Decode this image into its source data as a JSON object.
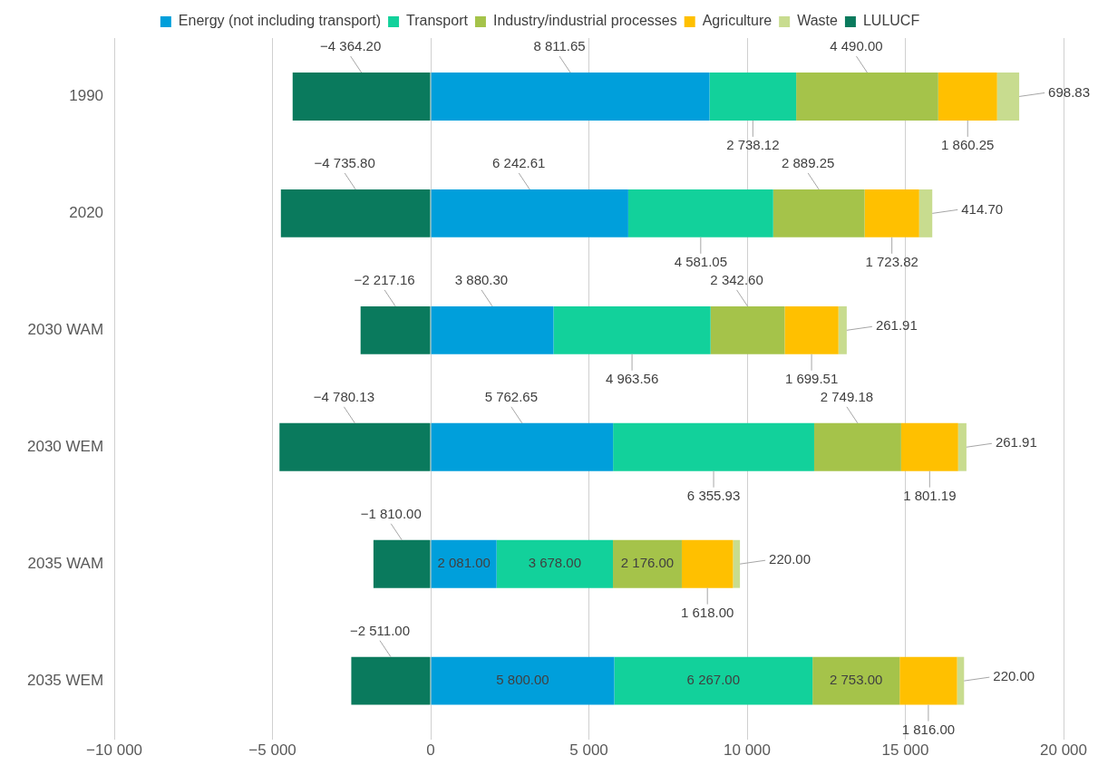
{
  "chart_data": {
    "type": "bar",
    "orientation": "horizontal",
    "stacked": true,
    "legend": "top",
    "grid": "x",
    "categories": [
      "1990",
      "2020",
      "2030 WAM",
      "2030 WEM",
      "2035 WAM",
      "2035 WEM"
    ],
    "xlim": [
      -10000,
      20000
    ],
    "xticks": [
      {
        "value": -10000,
        "label": "−10 000"
      },
      {
        "value": -5000,
        "label": "−5 000"
      },
      0,
      {
        "value": 5000,
        "label": "5 000"
      },
      {
        "value": 10000,
        "label": "10 000"
      },
      {
        "value": 15000,
        "label": "15 000"
      },
      {
        "value": 20000,
        "label": "20 000"
      }
    ],
    "series": [
      {
        "name": "Energy (not including transport)",
        "color": "#009fdb",
        "values": [
          8811.65,
          6242.61,
          3880.3,
          5762.65,
          2081.0,
          5800.0
        ],
        "value_labels": [
          "8 811.65",
          "6 242.61",
          "3 880.30",
          "5 762.65",
          "2 081.00",
          "5 800.00"
        ]
      },
      {
        "name": "Transport",
        "color": "#12d19b",
        "values": [
          2738.12,
          4581.05,
          4963.56,
          6355.93,
          3678.0,
          6267.0
        ],
        "value_labels": [
          "2 738.12",
          "4 581.05",
          "4 963.56",
          "6 355.93",
          "3 678.00",
          "6 267.00"
        ]
      },
      {
        "name": "Industry/industrial processes",
        "color": "#a5c34a",
        "values": [
          4490.0,
          2889.25,
          2342.6,
          2749.18,
          2176.0,
          2753.0
        ],
        "value_labels": [
          "4 490.00",
          "2 889.25",
          "2 342.60",
          "2 749.18",
          "2 176.00",
          "2 753.00"
        ]
      },
      {
        "name": "Agriculture",
        "color": "#ffc000",
        "values": [
          1860.25,
          1723.82,
          1699.51,
          1801.19,
          1618.0,
          1816.0
        ],
        "value_labels": [
          "1 860.25",
          "1 723.82",
          "1 699.51",
          "1 801.19",
          "1 618.00",
          "1 816.00"
        ]
      },
      {
        "name": "Waste",
        "color": "#c8dc8f",
        "values": [
          698.83,
          414.7,
          261.91,
          261.91,
          220.0,
          220.0
        ],
        "value_labels": [
          "698.83",
          "414.70",
          "261.91",
          "261.91",
          "220.00",
          "220.00"
        ]
      },
      {
        "name": "LULUCF",
        "color": "#0a7a5d",
        "values": [
          -4364.2,
          -4735.8,
          -2217.16,
          -4780.13,
          -1810.0,
          -2511.0
        ],
        "value_labels": [
          "−4 364.20",
          "−4 735.80",
          "−2 217.16",
          "−4 780.13",
          "−1 810.00",
          "−2 511.00"
        ]
      }
    ]
  }
}
